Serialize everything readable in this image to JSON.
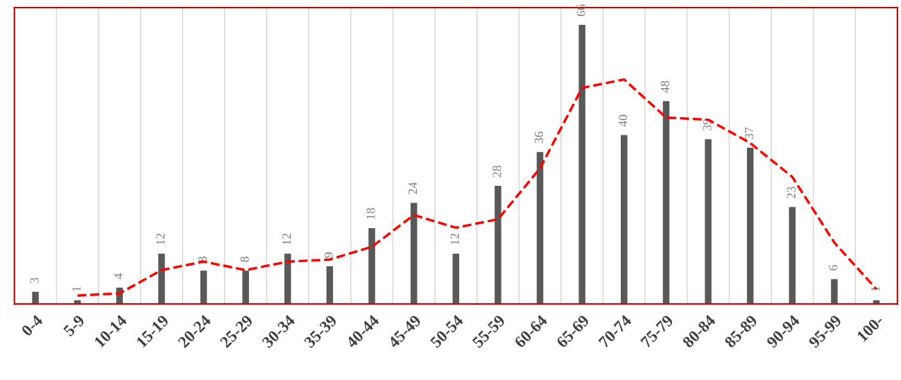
{
  "chart_data": {
    "type": "bar",
    "categories": [
      "0-4",
      "5-9",
      "10-14",
      "15-19",
      "20-24",
      "25-29",
      "30-34",
      "35-39",
      "40-44",
      "45-49",
      "50-54",
      "55-59",
      "60-64",
      "65-69",
      "70-74",
      "75-79",
      "80-84",
      "85-89",
      "90-94",
      "95-99",
      "100-"
    ],
    "series": [
      {
        "color": "#595959",
        "values": [
          3,
          1,
          4,
          12,
          8,
          8,
          12,
          9,
          18,
          24,
          12,
          28,
          36,
          66,
          40,
          48,
          39,
          37,
          23,
          6,
          1
        ],
        "value_labels": [
          "3",
          "1",
          "4",
          "12",
          "8",
          "8",
          "12",
          "9",
          "18",
          "24",
          "12",
          "28",
          "36",
          "66",
          "40",
          "48",
          "39",
          "37",
          "23",
          "6",
          "1"
        ]
      },
      {
        "type": "line",
        "color": "#ff0000",
        "line_style": "dashed",
        "values": [
          null,
          2,
          2.5,
          8,
          10,
          8,
          10,
          10.5,
          13.5,
          21,
          18,
          20,
          32,
          51,
          53,
          44,
          43.5,
          38,
          30,
          14.5,
          3.5
        ]
      }
    ],
    "grid": "x"
  }
}
